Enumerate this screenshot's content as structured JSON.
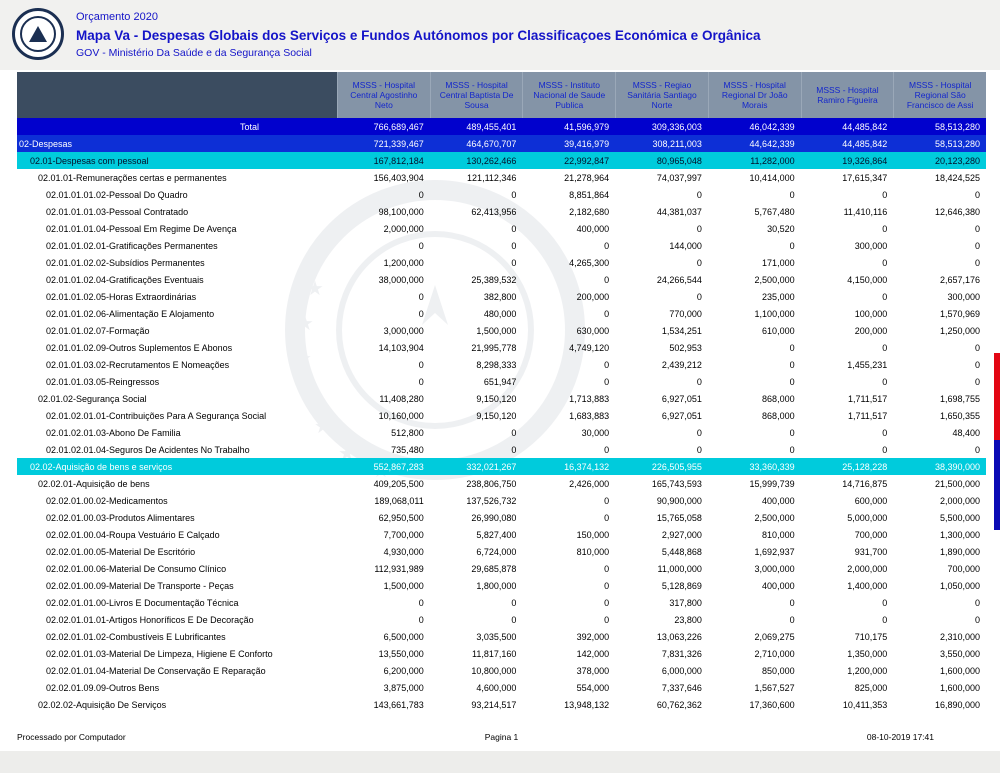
{
  "page": {
    "budget_title": "Orçamento 2020",
    "report_title": "Mapa Va - Despesas Globais dos Serviços e Fundos Autónomos por Classificaçoes Económica e Orgânica",
    "ministry": "GOV - Ministério Da Saúde e da Segurança Social"
  },
  "table": {
    "columns": [
      "MSSS - Hospital Central Agostinho Neto",
      "MSSS - Hospital Central Baptista De Sousa",
      "MSSS - Instituto Nacional de Saude Publica",
      "MSSS - Regiao Sanitária Santiago Norte",
      "MSSS - Hospital Regional Dr João Morais",
      "MSSS - Hospital Ramiro Figueira",
      "MSSS - Hospital Regional São Francisco de Assi"
    ],
    "rows": [
      {
        "label": "Total",
        "style": "total",
        "indent": 0,
        "values": [
          "766,689,467",
          "489,455,401",
          "41,596,979",
          "309,336,003",
          "46,042,339",
          "44,485,842",
          "58,513,280"
        ]
      },
      {
        "label": "02-Despesas",
        "style": "section-blue",
        "indent": 0,
        "values": [
          "721,339,467",
          "464,670,707",
          "39,416,979",
          "308,211,003",
          "44,642,339",
          "44,485,842",
          "58,513,280"
        ]
      },
      {
        "label": "02.01-Despesas com pessoal",
        "style": "group-cyan-dark",
        "indent": 1,
        "values": [
          "167,812,184",
          "130,262,466",
          "22,992,847",
          "80,965,048",
          "11,282,000",
          "19,326,864",
          "20,123,280"
        ]
      },
      {
        "label": "02.01.01-Remunerações certas e permanentes",
        "style": "plain",
        "indent": 2,
        "values": [
          "156,403,904",
          "121,112,346",
          "21,278,964",
          "74,037,997",
          "10,414,000",
          "17,615,347",
          "18,424,525"
        ]
      },
      {
        "label": "02.01.01.01.02-Pessoal Do Quadro",
        "style": "plain",
        "indent": 3,
        "values": [
          "0",
          "0",
          "8,851,864",
          "0",
          "0",
          "0",
          "0"
        ]
      },
      {
        "label": "02.01.01.01.03-Pessoal Contratado",
        "style": "plain",
        "indent": 3,
        "values": [
          "98,100,000",
          "62,413,956",
          "2,182,680",
          "44,381,037",
          "5,767,480",
          "11,410,116",
          "12,646,380"
        ]
      },
      {
        "label": "02.01.01.01.04-Pessoal Em Regime De Avença",
        "style": "plain",
        "indent": 3,
        "values": [
          "2,000,000",
          "0",
          "400,000",
          "0",
          "30,520",
          "0",
          "0"
        ]
      },
      {
        "label": "02.01.01.02.01-Gratificações Permanentes",
        "style": "plain",
        "indent": 3,
        "values": [
          "0",
          "0",
          "0",
          "144,000",
          "0",
          "300,000",
          "0"
        ]
      },
      {
        "label": "02.01.01.02.02-Subsídios Permanentes",
        "style": "plain",
        "indent": 3,
        "values": [
          "1,200,000",
          "0",
          "4,265,300",
          "0",
          "171,000",
          "0",
          "0"
        ]
      },
      {
        "label": "02.01.01.02.04-Gratificações Eventuais",
        "style": "plain",
        "indent": 3,
        "values": [
          "38,000,000",
          "25,389,532",
          "0",
          "24,266,544",
          "2,500,000",
          "4,150,000",
          "2,657,176"
        ]
      },
      {
        "label": "02.01.01.02.05-Horas Extraordinárias",
        "style": "plain",
        "indent": 3,
        "values": [
          "0",
          "382,800",
          "200,000",
          "0",
          "235,000",
          "0",
          "300,000"
        ]
      },
      {
        "label": "02.01.01.02.06-Alimentação E Alojamento",
        "style": "plain",
        "indent": 3,
        "values": [
          "0",
          "480,000",
          "0",
          "770,000",
          "1,100,000",
          "100,000",
          "1,570,969"
        ]
      },
      {
        "label": "02.01.01.02.07-Formação",
        "style": "plain",
        "indent": 3,
        "values": [
          "3,000,000",
          "1,500,000",
          "630,000",
          "1,534,251",
          "610,000",
          "200,000",
          "1,250,000"
        ]
      },
      {
        "label": "02.01.01.02.09-Outros Suplementos E Abonos",
        "style": "plain",
        "indent": 3,
        "values": [
          "14,103,904",
          "21,995,778",
          "4,749,120",
          "502,953",
          "0",
          "0",
          "0"
        ]
      },
      {
        "label": "02.01.01.03.02-Recrutamentos E Nomeações",
        "style": "plain",
        "indent": 3,
        "values": [
          "0",
          "8,298,333",
          "0",
          "2,439,212",
          "0",
          "1,455,231",
          "0"
        ]
      },
      {
        "label": "02.01.01.03.05-Reingressos",
        "style": "plain",
        "indent": 3,
        "values": [
          "0",
          "651,947",
          "0",
          "0",
          "0",
          "0",
          "0"
        ]
      },
      {
        "label": "02.01.02-Segurança Social",
        "style": "plain",
        "indent": 2,
        "values": [
          "11,408,280",
          "9,150,120",
          "1,713,883",
          "6,927,051",
          "868,000",
          "1,711,517",
          "1,698,755"
        ]
      },
      {
        "label": "02.01.02.01.01-Contribuições Para A Segurança Social",
        "style": "plain",
        "indent": 3,
        "values": [
          "10,160,000",
          "9,150,120",
          "1,683,883",
          "6,927,051",
          "868,000",
          "1,711,517",
          "1,650,355"
        ]
      },
      {
        "label": "02.01.02.01.03-Abono De Familia",
        "style": "plain",
        "indent": 3,
        "values": [
          "512,800",
          "0",
          "30,000",
          "0",
          "0",
          "0",
          "48,400"
        ]
      },
      {
        "label": "02.01.02.01.04-Seguros De Acidentes No Trabalho",
        "style": "plain",
        "indent": 3,
        "values": [
          "735,480",
          "0",
          "0",
          "0",
          "0",
          "0",
          "0"
        ]
      },
      {
        "label": "02.02-Aquisição de bens e serviços",
        "style": "group-cyan-light",
        "indent": 1,
        "values": [
          "552,867,283",
          "332,021,267",
          "16,374,132",
          "226,505,955",
          "33,360,339",
          "25,128,228",
          "38,390,000"
        ]
      },
      {
        "label": "02.02.01-Aquisição de bens",
        "style": "plain",
        "indent": 2,
        "values": [
          "409,205,500",
          "238,806,750",
          "2,426,000",
          "165,743,593",
          "15,999,739",
          "14,716,875",
          "21,500,000"
        ]
      },
      {
        "label": "02.02.01.00.02-Medicamentos",
        "style": "plain",
        "indent": 3,
        "values": [
          "189,068,011",
          "137,526,732",
          "0",
          "90,900,000",
          "400,000",
          "600,000",
          "2,000,000"
        ]
      },
      {
        "label": "02.02.01.00.03-Produtos Alimentares",
        "style": "plain",
        "indent": 3,
        "values": [
          "62,950,500",
          "26,990,080",
          "0",
          "15,765,058",
          "2,500,000",
          "5,000,000",
          "5,500,000"
        ]
      },
      {
        "label": "02.02.01.00.04-Roupa  Vestuário E Calçado",
        "style": "plain",
        "indent": 3,
        "values": [
          "7,700,000",
          "5,827,400",
          "150,000",
          "2,927,000",
          "810,000",
          "700,000",
          "1,300,000"
        ]
      },
      {
        "label": "02.02.01.00.05-Material De Escritório",
        "style": "plain",
        "indent": 3,
        "values": [
          "4,930,000",
          "6,724,000",
          "810,000",
          "5,448,868",
          "1,692,937",
          "931,700",
          "1,890,000"
        ]
      },
      {
        "label": "02.02.01.00.06-Material De Consumo Clínico",
        "style": "plain",
        "indent": 3,
        "values": [
          "112,931,989",
          "29,685,878",
          "0",
          "11,000,000",
          "3,000,000",
          "2,000,000",
          "700,000"
        ]
      },
      {
        "label": "02.02.01.00.09-Material De Transporte - Peças",
        "style": "plain",
        "indent": 3,
        "values": [
          "1,500,000",
          "1,800,000",
          "0",
          "5,128,869",
          "400,000",
          "1,400,000",
          "1,050,000"
        ]
      },
      {
        "label": "02.02.01.01.00-Livros E Documentação Técnica",
        "style": "plain",
        "indent": 3,
        "values": [
          "0",
          "0",
          "0",
          "317,800",
          "0",
          "0",
          "0"
        ]
      },
      {
        "label": "02.02.01.01.01-Artigos Honoríficos E De Decoração",
        "style": "plain",
        "indent": 3,
        "values": [
          "0",
          "0",
          "0",
          "23,800",
          "0",
          "0",
          "0"
        ]
      },
      {
        "label": "02.02.01.01.02-Combustíveis E Lubrificantes",
        "style": "plain",
        "indent": 3,
        "values": [
          "6,500,000",
          "3,035,500",
          "392,000",
          "13,063,226",
          "2,069,275",
          "710,175",
          "2,310,000"
        ]
      },
      {
        "label": "02.02.01.01.03-Material De Limpeza, Higiene E Conforto",
        "style": "plain",
        "indent": 3,
        "values": [
          "13,550,000",
          "11,817,160",
          "142,000",
          "7,831,326",
          "2,710,000",
          "1,350,000",
          "3,550,000"
        ]
      },
      {
        "label": "02.02.01.01.04-Material De Conservação E Reparação",
        "style": "plain",
        "indent": 3,
        "values": [
          "6,200,000",
          "10,800,000",
          "378,000",
          "6,000,000",
          "850,000",
          "1,200,000",
          "1,600,000"
        ]
      },
      {
        "label": "02.02.01.09.09-Outros Bens",
        "style": "plain",
        "indent": 3,
        "values": [
          "3,875,000",
          "4,600,000",
          "554,000",
          "7,337,646",
          "1,567,527",
          "825,000",
          "1,600,000"
        ]
      },
      {
        "label": "02.02.02-Aquisição De Serviços",
        "style": "plain",
        "indent": 2,
        "values": [
          "143,661,783",
          "93,214,517",
          "13,948,132",
          "60,762,362",
          "17,360,600",
          "10,411,353",
          "16,890,000"
        ]
      }
    ]
  },
  "footer": {
    "processed": "Processado por Computador",
    "page": "Pagina 1",
    "datetime": "08-10-2019   17:41"
  },
  "colors": {
    "title_blue": "#1414c8",
    "header_bg": "#8494a7",
    "header_text": "#1326cc",
    "header_first_bg": "#3b4c60",
    "total_row_bg": "#0101cd",
    "section_row_bg": "#0d2fd6",
    "group_row_bg": "#00cbdc",
    "edge_marker_red": "#e30613",
    "edge_marker_blue": "#0b0bb5"
  }
}
